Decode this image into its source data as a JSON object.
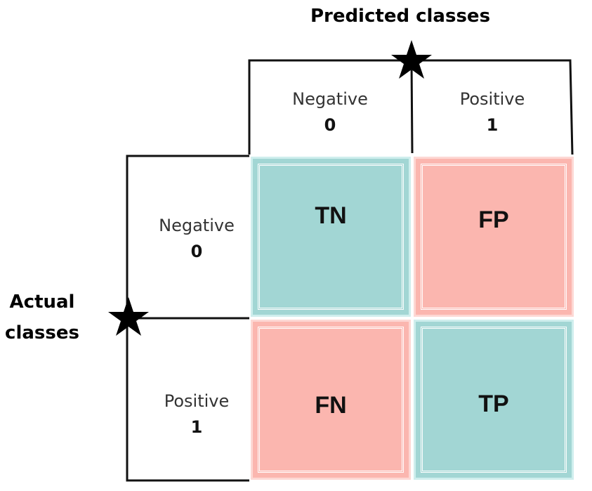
{
  "title": "Predicted classes",
  "ylabel_line1": "Actual",
  "ylabel_line2": "classes",
  "predicted": [
    {
      "name": "Negative",
      "code": "0"
    },
    {
      "name": "Positive",
      "code": "1"
    }
  ],
  "actual": [
    {
      "name": "Negative",
      "code": "0"
    },
    {
      "name": "Positive",
      "code": "1"
    }
  ],
  "cells": {
    "tn": "TN",
    "fp": "FP",
    "fn": "FN",
    "tp": "TP"
  },
  "colors": {
    "true_cell": "#a2d6d4",
    "false_cell": "#fbb6af"
  }
}
